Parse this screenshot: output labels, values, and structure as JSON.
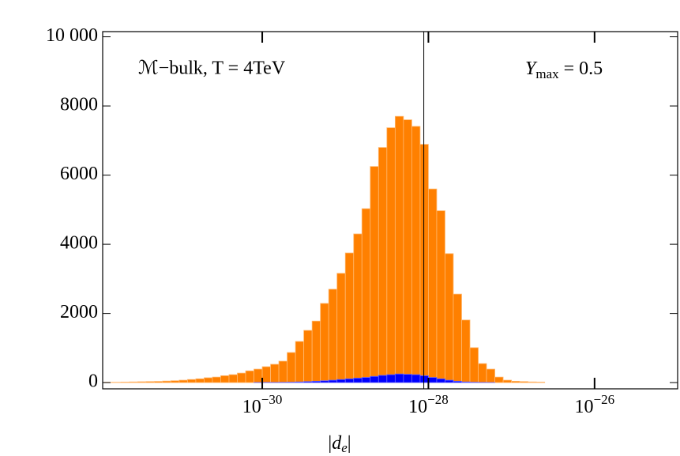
{
  "chart_data": {
    "type": "histogram",
    "xlabel": "|de|",
    "annotations": [
      "ℳ−bulk, T = 4TeV",
      "Ymax = 0.5"
    ],
    "x_scale": "log",
    "xlim": [
      1.2e-32,
      1e-25
    ],
    "ylim": [
      -180,
      10150
    ],
    "xticks": [
      {
        "value": 1e-30,
        "label": "10−30"
      },
      {
        "value": 1e-28,
        "label": "10−28"
      },
      {
        "value": 1e-26,
        "label": "10−26"
      }
    ],
    "yticks": [
      0,
      2000,
      4000,
      6000,
      8000,
      {
        "value": 10000,
        "label": "10 000"
      }
    ],
    "reference_line": 8.8e-29,
    "bins": [
      1.259e-32,
      1.585e-32,
      1.995e-32,
      2.512e-32,
      3.162e-32,
      3.981e-32,
      5.012e-32,
      6.31e-32,
      7.943e-32,
      1e-31,
      1.259e-31,
      1.585e-31,
      1.995e-31,
      2.512e-31,
      3.162e-31,
      3.981e-31,
      5.012e-31,
      6.31e-31,
      7.943e-31,
      1e-30,
      1.259e-30,
      1.585e-30,
      1.995e-30,
      2.512e-30,
      3.162e-30,
      3.981e-30,
      5.012e-30,
      6.31e-30,
      7.943e-30,
      1e-29,
      1.259e-29,
      1.585e-29,
      1.995e-29,
      2.512e-29,
      3.162e-29,
      3.981e-29,
      5.012e-29,
      6.31e-29,
      7.943e-29,
      1e-28,
      1.259e-28,
      1.585e-28,
      1.995e-28,
      2.512e-28,
      3.162e-28,
      3.981e-28,
      5.012e-28,
      6.31e-28,
      7.943e-28,
      1e-27,
      1.259e-27,
      1.585e-27,
      1.995e-27,
      2.512e-27
    ],
    "series": [
      {
        "color": "#ff8000",
        "values": [
          8,
          10,
          15,
          20,
          25,
          30,
          35,
          45,
          55,
          70,
          90,
          110,
          140,
          160,
          200,
          230,
          275,
          340,
          390,
          460,
          530,
          620,
          870,
          1190,
          1510,
          1780,
          2290,
          2700,
          3160,
          3750,
          4300,
          5030,
          6250,
          6800,
          7370,
          7700,
          7600,
          7410,
          6890,
          5600,
          4970,
          3730,
          2560,
          1810,
          1010,
          550,
          390,
          160,
          70,
          40,
          30,
          20,
          15
        ]
      },
      {
        "color": "#0000ff",
        "values": [
          0,
          0,
          0,
          0,
          0,
          0,
          0,
          0,
          0,
          0,
          0,
          0,
          0,
          0,
          0,
          0,
          0,
          0,
          3,
          5,
          5,
          8,
          12,
          20,
          30,
          40,
          55,
          70,
          90,
          110,
          130,
          150,
          180,
          210,
          230,
          250,
          240,
          230,
          200,
          150,
          110,
          70,
          40,
          20,
          10,
          5,
          2,
          0,
          0,
          0,
          0,
          0,
          0
        ]
      }
    ]
  }
}
